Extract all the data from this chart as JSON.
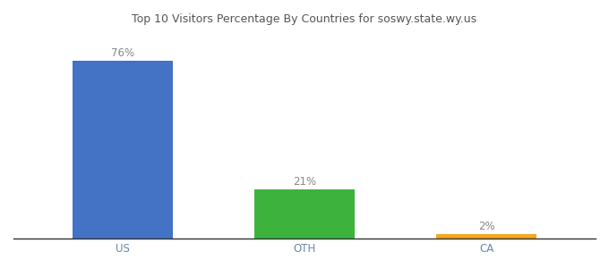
{
  "categories": [
    "US",
    "OTH",
    "CA"
  ],
  "values": [
    76,
    21,
    2
  ],
  "bar_colors": [
    "#4472c4",
    "#3db33d",
    "#f5a623"
  ],
  "labels": [
    "76%",
    "21%",
    "2%"
  ],
  "title": "Top 10 Visitors Percentage By Countries for soswy.state.wy.us",
  "ylim": [
    0,
    88
  ],
  "bar_width": 0.55,
  "title_fontsize": 9,
  "label_fontsize": 8.5,
  "tick_fontsize": 8.5,
  "background_color": "#ffffff",
  "label_color": "#888888",
  "tick_color": "#6688aa"
}
